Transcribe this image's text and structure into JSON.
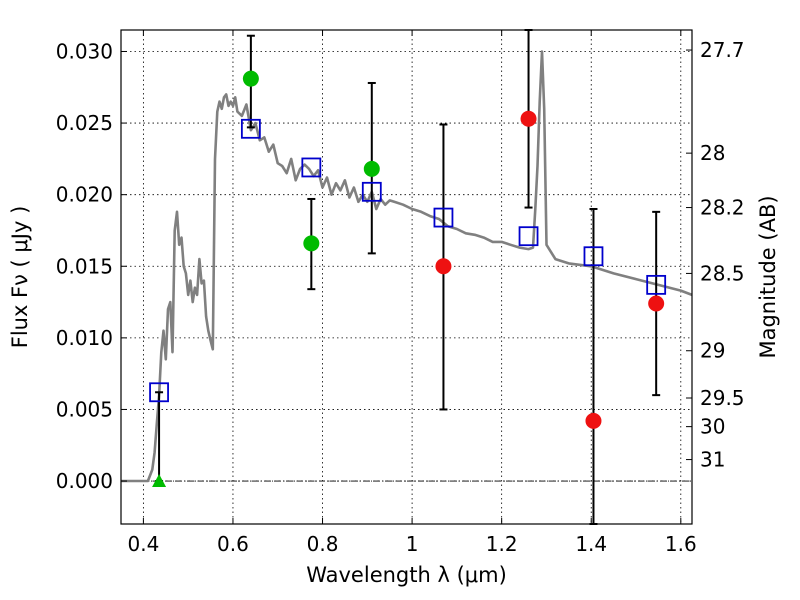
{
  "chart_data": {
    "type": "scatter",
    "xlabel": "Wavelength  λ (μm)",
    "ylabel": "Flux  Fν  ( μJy )",
    "ylabel_right": "Magnitude (AB)",
    "xlim": [
      0.35,
      1.625
    ],
    "ylim": [
      -0.003,
      0.0315
    ],
    "x_ticks": [
      0.4,
      0.6,
      0.8,
      1.0,
      1.2,
      1.4,
      1.6
    ],
    "x_tick_labels": [
      "0.4",
      "0.6",
      "0.8",
      "1",
      "1.2",
      "1.4",
      "1.6"
    ],
    "y_ticks": [
      0.0,
      0.005,
      0.01,
      0.015,
      0.02,
      0.025,
      0.03
    ],
    "y_tick_labels": [
      "0.000",
      "0.005",
      "0.010",
      "0.015",
      "0.020",
      "0.025",
      "0.030"
    ],
    "mag_ticks": [
      {
        "label": "27.7",
        "flux": 0.0301
      },
      {
        "label": "28",
        "flux": 0.0229
      },
      {
        "label": "28.2",
        "flux": 0.0191
      },
      {
        "label": "28.5",
        "flux": 0.0145
      },
      {
        "label": "29",
        "flux": 0.0091
      },
      {
        "label": "29.5",
        "flux": 0.0058
      },
      {
        "label": "30",
        "flux": 0.0038
      },
      {
        "label": "31",
        "flux": 0.0015
      }
    ],
    "grid": true,
    "colors": {
      "model": "#808080",
      "green": "#00bb00",
      "red": "#ee1111",
      "square": "#0000cc",
      "errorbar": "#000000"
    },
    "series": [
      {
        "kind": "model_spectrum",
        "x": [
          0.35,
          0.41,
          0.42,
          0.425,
          0.43,
          0.435,
          0.44,
          0.445,
          0.45,
          0.455,
          0.46,
          0.465,
          0.47,
          0.475,
          0.48,
          0.485,
          0.49,
          0.495,
          0.5,
          0.505,
          0.51,
          0.515,
          0.52,
          0.525,
          0.53,
          0.535,
          0.54,
          0.545,
          0.55,
          0.555,
          0.56,
          0.565,
          0.57,
          0.575,
          0.58,
          0.585,
          0.59,
          0.595,
          0.6,
          0.605,
          0.61,
          0.62,
          0.63,
          0.64,
          0.65,
          0.66,
          0.67,
          0.68,
          0.69,
          0.7,
          0.71,
          0.72,
          0.73,
          0.74,
          0.75,
          0.76,
          0.77,
          0.78,
          0.79,
          0.8,
          0.81,
          0.82,
          0.83,
          0.84,
          0.85,
          0.86,
          0.87,
          0.88,
          0.89,
          0.9,
          0.91,
          0.92,
          0.93,
          0.94,
          0.95,
          0.96,
          0.98,
          1.0,
          1.02,
          1.04,
          1.06,
          1.08,
          1.1,
          1.12,
          1.14,
          1.16,
          1.18,
          1.2,
          1.22,
          1.24,
          1.26,
          1.27,
          1.275,
          1.28,
          1.285,
          1.29,
          1.295,
          1.3,
          1.32,
          1.35,
          1.4,
          1.45,
          1.5,
          1.55,
          1.6,
          1.625
        ],
        "y": [
          0.0,
          0.0,
          0.0008,
          0.002,
          0.004,
          0.006,
          0.009,
          0.0105,
          0.0085,
          0.012,
          0.0125,
          0.009,
          0.0175,
          0.0188,
          0.0165,
          0.017,
          0.015,
          0.0145,
          0.013,
          0.014,
          0.0125,
          0.0135,
          0.013,
          0.0155,
          0.0138,
          0.014,
          0.0115,
          0.0105,
          0.0098,
          0.0092,
          0.0225,
          0.0258,
          0.0265,
          0.026,
          0.0268,
          0.027,
          0.0262,
          0.0265,
          0.0262,
          0.0268,
          0.0258,
          0.0255,
          0.0263,
          0.0245,
          0.025,
          0.0238,
          0.024,
          0.023,
          0.0235,
          0.0222,
          0.022,
          0.0215,
          0.0225,
          0.021,
          0.0218,
          0.0221,
          0.0218,
          0.0213,
          0.0217,
          0.0205,
          0.0212,
          0.02,
          0.0208,
          0.0203,
          0.021,
          0.0198,
          0.0205,
          0.0195,
          0.02,
          0.0195,
          0.0202,
          0.019,
          0.0197,
          0.0193,
          0.0196,
          0.0195,
          0.0193,
          0.019,
          0.0188,
          0.0185,
          0.0183,
          0.0178,
          0.0176,
          0.0173,
          0.0172,
          0.017,
          0.0167,
          0.0167,
          0.0165,
          0.0163,
          0.0162,
          0.0163,
          0.019,
          0.022,
          0.0265,
          0.03,
          0.026,
          0.0165,
          0.0155,
          0.0152,
          0.015,
          0.0145,
          0.0141,
          0.0137,
          0.0133,
          0.013
        ]
      },
      {
        "kind": "model_bandpass",
        "marker": "square",
        "x": [
          0.435,
          0.64,
          0.775,
          0.91,
          1.07,
          1.26,
          1.405,
          1.545
        ],
        "y": [
          0.0062,
          0.0246,
          0.0219,
          0.0202,
          0.0184,
          0.0171,
          0.0157,
          0.0137
        ]
      },
      {
        "kind": "observed",
        "marker": "circle",
        "points": [
          {
            "x": 0.64,
            "y": 0.0281,
            "err_low": 0.0247,
            "err_high": 0.0311,
            "color": "green"
          },
          {
            "x": 0.775,
            "y": 0.0166,
            "err_low": 0.0134,
            "err_high": 0.0197,
            "color": "green"
          },
          {
            "x": 0.91,
            "y": 0.0218,
            "err_low": 0.0159,
            "err_high": 0.0278,
            "color": "green"
          },
          {
            "x": 1.07,
            "y": 0.015,
            "err_low": 0.005,
            "err_high": 0.0249,
            "color": "red"
          },
          {
            "x": 1.26,
            "y": 0.0253,
            "err_low": 0.0191,
            "err_high": 0.0315,
            "color": "red"
          },
          {
            "x": 1.405,
            "y": 0.0042,
            "err_low": -0.003,
            "err_high": 0.019,
            "color": "red"
          },
          {
            "x": 1.545,
            "y": 0.0124,
            "err_low": 0.006,
            "err_high": 0.0188,
            "color": "red"
          }
        ]
      },
      {
        "kind": "upper_limit",
        "marker": "triangle",
        "points": [
          {
            "x": 0.435,
            "y": 0.0,
            "err_high": 0.0062,
            "color": "green"
          }
        ]
      }
    ]
  }
}
